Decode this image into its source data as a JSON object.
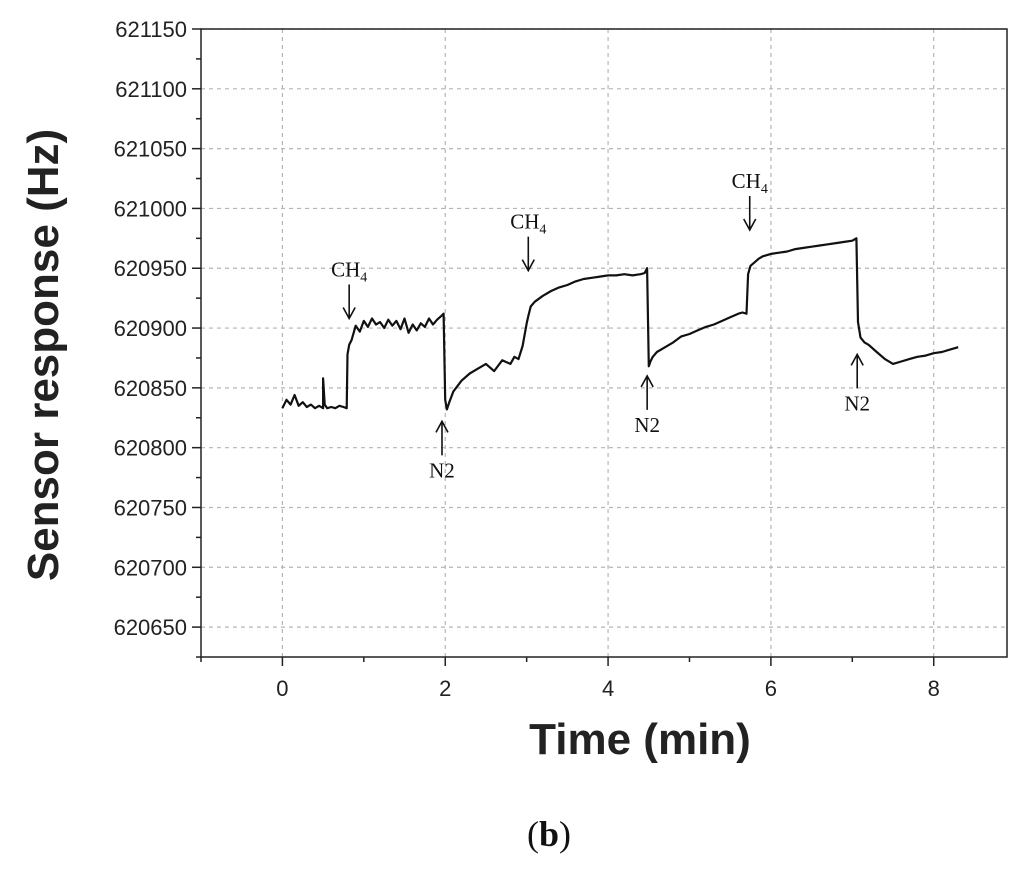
{
  "chart_data": {
    "type": "line",
    "xlabel": "Time (min)",
    "ylabel": "Sensor response (Hz)",
    "xlim": [
      -1,
      8.9
    ],
    "ylim": [
      620625,
      621150
    ],
    "x_ticks": [
      0,
      2,
      4,
      6,
      8
    ],
    "x_tick_labels": [
      "0",
      "2",
      "4",
      "6",
      "8"
    ],
    "y_ticks": [
      620650,
      620700,
      620750,
      620800,
      620850,
      620900,
      620950,
      621000,
      621050,
      621100,
      621150
    ],
    "y_tick_labels": [
      "620650",
      "620700",
      "620750",
      "620800",
      "620850",
      "620900",
      "620950",
      "621000",
      "621050",
      "621100",
      "621150"
    ],
    "grid": true,
    "series": [
      {
        "x": [
          0,
          0.05,
          0.1,
          0.15,
          0.2,
          0.25,
          0.3,
          0.35,
          0.4,
          0.45,
          0.5,
          0.5,
          0.52,
          0.55,
          0.6,
          0.65,
          0.7,
          0.75,
          0.79,
          0.8,
          0.82,
          0.85,
          0.9,
          0.95,
          1.0,
          1.05,
          1.1,
          1.15,
          1.2,
          1.25,
          1.3,
          1.35,
          1.4,
          1.45,
          1.5,
          1.55,
          1.6,
          1.65,
          1.7,
          1.75,
          1.8,
          1.85,
          1.9,
          1.95,
          1.98,
          2.0,
          2.02,
          2.05,
          2.1,
          2.2,
          2.3,
          2.4,
          2.5,
          2.6,
          2.7,
          2.8,
          2.85,
          2.9,
          2.95,
          3.0,
          3.02,
          3.05,
          3.1,
          3.2,
          3.3,
          3.4,
          3.5,
          3.6,
          3.7,
          3.8,
          3.9,
          4.0,
          4.1,
          4.2,
          4.3,
          4.4,
          4.45,
          4.48,
          4.5,
          4.52,
          4.55,
          4.6,
          4.7,
          4.8,
          4.9,
          5.0,
          5.1,
          5.2,
          5.3,
          5.4,
          5.5,
          5.6,
          5.65,
          5.7,
          5.72,
          5.75,
          5.8,
          5.85,
          5.9,
          6.0,
          6.1,
          6.2,
          6.3,
          6.4,
          6.5,
          6.6,
          6.7,
          6.8,
          6.9,
          7.0,
          7.05,
          7.07,
          7.1,
          7.15,
          7.2,
          7.3,
          7.4,
          7.5,
          7.6,
          7.7,
          7.8,
          7.9,
          8.0,
          8.1,
          8.2,
          8.3
        ],
        "y": [
          620833,
          620840,
          620836,
          620844,
          620835,
          620838,
          620834,
          620836,
          620833,
          620835,
          620833,
          620858,
          620836,
          620833,
          620834,
          620833,
          620835,
          620834,
          620833,
          620878,
          620886,
          620890,
          620902,
          620897,
          620906,
          620901,
          620908,
          620903,
          620905,
          620900,
          620907,
          620902,
          620906,
          620899,
          620908,
          620896,
          620903,
          620898,
          620904,
          620901,
          620908,
          620903,
          620907,
          620910,
          620912,
          620840,
          620832,
          620838,
          620847,
          620856,
          620862,
          620866,
          620870,
          620864,
          620873,
          620870,
          620876,
          620874,
          620885,
          620904,
          620910,
          620918,
          620922,
          620927,
          620931,
          620934,
          620936,
          620939,
          620941,
          620942,
          620943,
          620944,
          620944,
          620945,
          620944,
          620945,
          620946,
          620950,
          620868,
          620872,
          620876,
          620880,
          620884,
          620888,
          620893,
          620895,
          620898,
          620901,
          620903,
          620906,
          620909,
          620912,
          620913,
          620912,
          620945,
          620952,
          620955,
          620958,
          620960,
          620962,
          620963,
          620964,
          620966,
          620967,
          620968,
          620969,
          620970,
          620971,
          620972,
          620973,
          620975,
          620905,
          620892,
          620888,
          620886,
          620880,
          620874,
          620870,
          620872,
          620874,
          620876,
          620877,
          620879,
          620880,
          620882,
          620884
        ]
      }
    ],
    "annotations": [
      {
        "base": "CH",
        "sub": "4",
        "x": 0.82,
        "y": 620908,
        "direction": "down"
      },
      {
        "base": "CH",
        "sub": "4",
        "x": 3.02,
        "y": 620948,
        "direction": "down"
      },
      {
        "base": "CH",
        "sub": "4",
        "x": 5.74,
        "y": 620982,
        "direction": "down"
      },
      {
        "base": "N2",
        "x": 1.96,
        "y": 620822,
        "direction": "up"
      },
      {
        "base": "N2",
        "x": 4.48,
        "y": 620860,
        "direction": "up"
      },
      {
        "base": "N2",
        "x": 7.06,
        "y": 620878,
        "direction": "up"
      }
    ]
  },
  "caption": {
    "open": "(",
    "letter": "b",
    "close": ")"
  }
}
